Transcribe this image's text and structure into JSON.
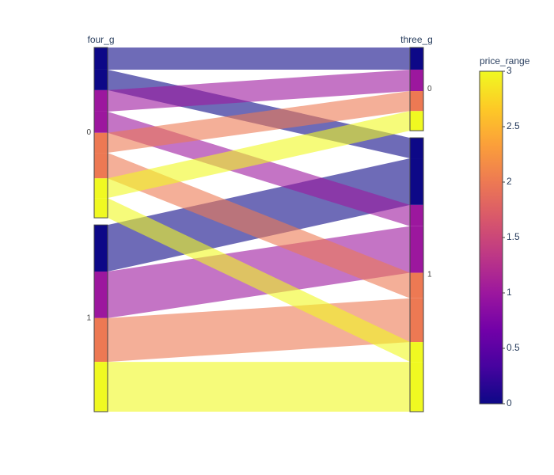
{
  "chart_data": {
    "type": "parcats",
    "dimensions": [
      {
        "label": "four_g",
        "categories": [
          "0",
          "1"
        ]
      },
      {
        "label": "three_g",
        "categories": [
          "0",
          "1"
        ]
      }
    ],
    "flows": [
      {
        "four_g": 0,
        "three_g": 0,
        "price_range": 0,
        "count": 124
      },
      {
        "four_g": 0,
        "three_g": 1,
        "price_range": 0,
        "count": 115
      },
      {
        "four_g": 1,
        "three_g": 1,
        "price_range": 0,
        "count": 261
      },
      {
        "four_g": 0,
        "three_g": 0,
        "price_range": 1,
        "count": 120
      },
      {
        "four_g": 0,
        "three_g": 1,
        "price_range": 1,
        "count": 119
      },
      {
        "four_g": 1,
        "three_g": 1,
        "price_range": 1,
        "count": 261
      },
      {
        "four_g": 0,
        "three_g": 0,
        "price_range": 2,
        "count": 112
      },
      {
        "four_g": 0,
        "three_g": 1,
        "price_range": 2,
        "count": 143
      },
      {
        "four_g": 1,
        "three_g": 1,
        "price_range": 2,
        "count": 245
      },
      {
        "four_g": 0,
        "three_g": 0,
        "price_range": 3,
        "count": 110
      },
      {
        "four_g": 0,
        "three_g": 1,
        "price_range": 3,
        "count": 111
      },
      {
        "four_g": 1,
        "three_g": 1,
        "price_range": 3,
        "count": 279
      }
    ],
    "colorbar": {
      "title": "price_range",
      "lim": [
        0,
        3
      ],
      "ticks": [
        0,
        0.5,
        1,
        1.5,
        2,
        2.5,
        3
      ],
      "colorscale": [
        "#0d0887",
        "#46039f",
        "#7201a8",
        "#9c179e",
        "#bd3786",
        "#d8576b",
        "#ed7953",
        "#fb9f3a",
        "#fdca26",
        "#f0f921"
      ]
    }
  }
}
